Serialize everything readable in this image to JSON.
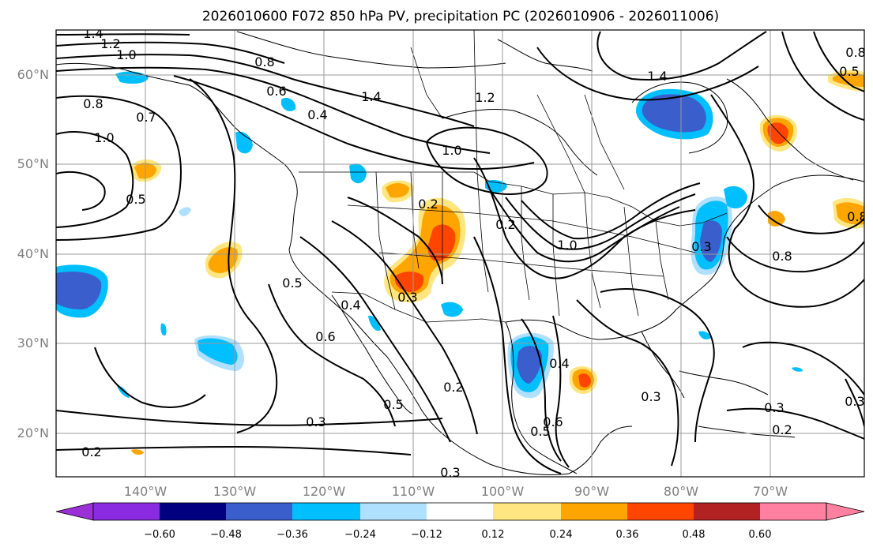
{
  "title": "2026010600 F072 850 hPa PV, precipitation PC (2026010906 - 2026011006)",
  "lat_labels": [
    "60°N",
    "50°N",
    "40°N",
    "30°N",
    "20°N"
  ],
  "lon_labels": [
    "140°W",
    "130°W",
    "120°W",
    "110°W",
    "100°W",
    "90°W",
    "80°W",
    "70°W"
  ],
  "colorbar": {
    "ticks": [
      "−0.60",
      "−0.48",
      "−0.36",
      "−0.24",
      "−0.12",
      "0.12",
      "0.24",
      "0.36",
      "0.48",
      "0.60"
    ],
    "colors": [
      "#8a2be2",
      "#9b30d6",
      "#000080",
      "#3a5fcd",
      "#00bfff",
      "#b0e0ff",
      "#ffffff",
      "#ffe680",
      "#ffa500",
      "#ff4500",
      "#b22222",
      "#ff80a0"
    ]
  },
  "contour_labels": [
    "1.4",
    "1.2",
    "1.0",
    "0.8",
    "0.6",
    "0.4",
    "0.7",
    "0.8",
    "1.0",
    "0.5",
    "1.4",
    "1.2",
    "1.0",
    "1.4",
    "0.8",
    "0.5",
    "0.2",
    "0.3",
    "0.5",
    "0.4",
    "0.6",
    "0.2",
    "0.5",
    "0.3",
    "0.2",
    "1.0",
    "0.4",
    "0.5",
    "0.6",
    "0.3",
    "0.3",
    "0.2",
    "0.3",
    "0.8",
    "0.8",
    "0.3",
    "0.3",
    "0.2"
  ]
}
